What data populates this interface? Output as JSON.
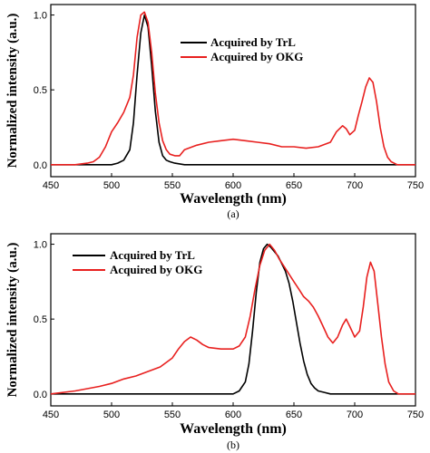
{
  "chart_data": [
    {
      "type": "line",
      "panel_label": "(a)",
      "xlabel": "Wavelength (nm)",
      "ylabel": "Normalized intensity (a.u.)",
      "xlim": [
        450,
        750
      ],
      "ylim": [
        -0.08,
        1.07
      ],
      "xticks": [
        450,
        500,
        550,
        600,
        650,
        700,
        750
      ],
      "yticks": [
        0.0,
        0.5,
        1.0
      ],
      "ytick_labels": [
        "0.0",
        "0.5",
        "1.0"
      ],
      "legend_position": "top-right",
      "grid": false,
      "series": [
        {
          "name": "Acquired by TrL",
          "color": "#000000",
          "x": [
            450,
            480,
            500,
            505,
            510,
            515,
            518,
            521,
            524,
            527,
            530,
            533,
            536,
            539,
            542,
            545,
            548,
            552,
            560,
            600,
            650,
            700,
            750
          ],
          "y": [
            0.0,
            0.0,
            0.0,
            0.01,
            0.03,
            0.1,
            0.28,
            0.6,
            0.88,
            1.0,
            0.92,
            0.66,
            0.36,
            0.15,
            0.06,
            0.03,
            0.02,
            0.01,
            0.0,
            0.0,
            0.0,
            0.0,
            0.0
          ]
        },
        {
          "name": "Acquired by OKG",
          "color": "#e8201f",
          "x": [
            450,
            470,
            480,
            485,
            490,
            495,
            500,
            505,
            510,
            515,
            518,
            521,
            524,
            527,
            530,
            533,
            536,
            539,
            542,
            545,
            548,
            552,
            556,
            560,
            570,
            580,
            590,
            600,
            610,
            620,
            630,
            640,
            650,
            660,
            670,
            680,
            685,
            690,
            693,
            696,
            700,
            703,
            706,
            709,
            712,
            715,
            718,
            721,
            724,
            727,
            730,
            735,
            740,
            750
          ],
          "y": [
            0.0,
            0.0,
            0.01,
            0.02,
            0.05,
            0.12,
            0.22,
            0.28,
            0.35,
            0.45,
            0.6,
            0.85,
            1.0,
            1.02,
            0.95,
            0.75,
            0.48,
            0.28,
            0.16,
            0.1,
            0.07,
            0.06,
            0.06,
            0.1,
            0.13,
            0.15,
            0.16,
            0.17,
            0.16,
            0.15,
            0.14,
            0.12,
            0.12,
            0.11,
            0.12,
            0.15,
            0.22,
            0.26,
            0.24,
            0.2,
            0.23,
            0.33,
            0.42,
            0.52,
            0.58,
            0.55,
            0.42,
            0.25,
            0.12,
            0.05,
            0.02,
            0.0,
            0.0,
            0.0
          ]
        }
      ]
    },
    {
      "type": "line",
      "panel_label": "(b)",
      "xlabel": "Wavelength (nm)",
      "ylabel": "Normalized intensity (a.u.)",
      "xlim": [
        450,
        750
      ],
      "ylim": [
        -0.08,
        1.07
      ],
      "xticks": [
        450,
        500,
        550,
        600,
        650,
        700,
        750
      ],
      "yticks": [
        0.0,
        0.5,
        1.0
      ],
      "ytick_labels": [
        "0.0",
        "0.5",
        "1.0"
      ],
      "legend_position": "top-left",
      "grid": false,
      "series": [
        {
          "name": "Acquired by TrL",
          "color": "#000000",
          "x": [
            450,
            500,
            550,
            600,
            605,
            610,
            613,
            616,
            619,
            622,
            625,
            628,
            631,
            634,
            637,
            640,
            643,
            646,
            649,
            652,
            655,
            658,
            661,
            664,
            667,
            670,
            675,
            680,
            700,
            750
          ],
          "y": [
            0.0,
            0.0,
            0.0,
            0.0,
            0.02,
            0.08,
            0.2,
            0.42,
            0.68,
            0.88,
            0.97,
            1.0,
            0.98,
            0.95,
            0.92,
            0.87,
            0.82,
            0.74,
            0.62,
            0.48,
            0.34,
            0.22,
            0.13,
            0.07,
            0.04,
            0.02,
            0.01,
            0.0,
            0.0,
            0.0
          ]
        },
        {
          "name": "Acquired by OKG",
          "color": "#e8201f",
          "x": [
            450,
            470,
            490,
            500,
            510,
            520,
            530,
            540,
            550,
            555,
            560,
            565,
            570,
            575,
            580,
            590,
            600,
            605,
            610,
            614,
            618,
            622,
            626,
            630,
            634,
            638,
            642,
            646,
            650,
            654,
            658,
            662,
            666,
            670,
            674,
            678,
            682,
            686,
            690,
            693,
            696,
            700,
            704,
            707,
            710,
            713,
            716,
            719,
            722,
            725,
            728,
            732,
            736,
            740,
            750
          ],
          "y": [
            0.0,
            0.02,
            0.05,
            0.07,
            0.1,
            0.12,
            0.15,
            0.18,
            0.24,
            0.3,
            0.35,
            0.38,
            0.36,
            0.33,
            0.31,
            0.3,
            0.3,
            0.32,
            0.38,
            0.52,
            0.7,
            0.86,
            0.96,
            1.0,
            0.96,
            0.9,
            0.85,
            0.8,
            0.75,
            0.7,
            0.65,
            0.62,
            0.58,
            0.52,
            0.45,
            0.38,
            0.34,
            0.38,
            0.46,
            0.5,
            0.45,
            0.38,
            0.42,
            0.58,
            0.78,
            0.88,
            0.82,
            0.6,
            0.38,
            0.2,
            0.08,
            0.02,
            0.0,
            0.0,
            0.0
          ]
        }
      ]
    }
  ]
}
